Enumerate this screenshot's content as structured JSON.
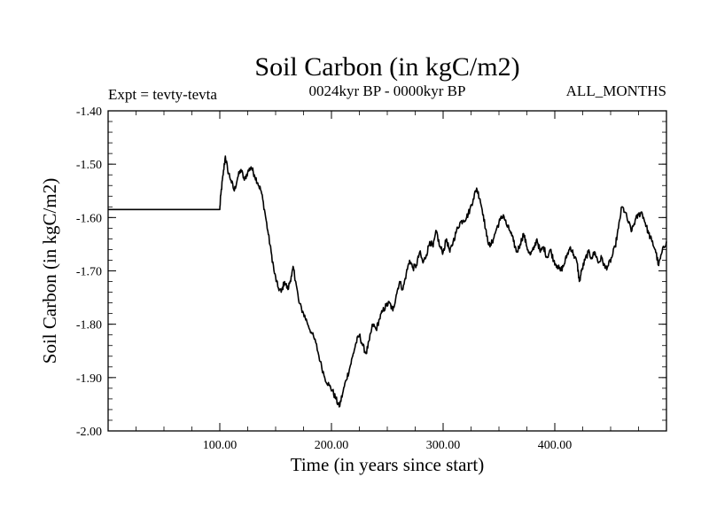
{
  "chart_data": {
    "type": "line",
    "title": "Soil Carbon (in kgC/m2)",
    "subtitle": "0024kyr BP - 0000kyr BP",
    "left_label": "Expt = tevty-tevta",
    "right_label": "ALL_MONTHS",
    "xlabel": "Time (in years since start)",
    "ylabel": "Soil Carbon (in kgC/m2)",
    "xlim": [
      0,
      500
    ],
    "ylim": [
      -2.0,
      -1.4
    ],
    "x_ticks": [
      100,
      200,
      300,
      400
    ],
    "x_tick_labels": [
      "100.00",
      "200.00",
      "300.00",
      "400.00"
    ],
    "y_ticks": [
      -1.4,
      -1.5,
      -1.6,
      -1.7,
      -1.8,
      -1.9,
      -2.0
    ],
    "y_tick_labels": [
      "-1.40",
      "-1.50",
      "-1.60",
      "-1.70",
      "-1.80",
      "-1.90",
      "-2.00"
    ],
    "grid": false,
    "series": [
      {
        "color": "#000000",
        "points": [
          [
            0,
            -1.585
          ],
          [
            100,
            -1.585
          ],
          [
            101,
            -1.555
          ],
          [
            103,
            -1.52
          ],
          [
            105,
            -1.485
          ],
          [
            107,
            -1.51
          ],
          [
            110,
            -1.53
          ],
          [
            113,
            -1.55
          ],
          [
            116,
            -1.525
          ],
          [
            119,
            -1.51
          ],
          [
            122,
            -1.53
          ],
          [
            125,
            -1.515
          ],
          [
            128,
            -1.505
          ],
          [
            131,
            -1.52
          ],
          [
            134,
            -1.535
          ],
          [
            137,
            -1.55
          ],
          [
            140,
            -1.585
          ],
          [
            143,
            -1.625
          ],
          [
            146,
            -1.665
          ],
          [
            149,
            -1.705
          ],
          [
            152,
            -1.73
          ],
          [
            155,
            -1.74
          ],
          [
            158,
            -1.72
          ],
          [
            161,
            -1.735
          ],
          [
            164,
            -1.71
          ],
          [
            166,
            -1.695
          ],
          [
            168,
            -1.72
          ],
          [
            171,
            -1.76
          ],
          [
            175,
            -1.78
          ],
          [
            178,
            -1.795
          ],
          [
            182,
            -1.815
          ],
          [
            186,
            -1.835
          ],
          [
            190,
            -1.87
          ],
          [
            194,
            -1.9
          ],
          [
            198,
            -1.915
          ],
          [
            201,
            -1.925
          ],
          [
            204,
            -1.94
          ],
          [
            207,
            -1.955
          ],
          [
            210,
            -1.93
          ],
          [
            213,
            -1.905
          ],
          [
            216,
            -1.885
          ],
          [
            219,
            -1.86
          ],
          [
            222,
            -1.835
          ],
          [
            225,
            -1.82
          ],
          [
            228,
            -1.84
          ],
          [
            231,
            -1.855
          ],
          [
            234,
            -1.83
          ],
          [
            237,
            -1.8
          ],
          [
            240,
            -1.81
          ],
          [
            243,
            -1.79
          ],
          [
            246,
            -1.775
          ],
          [
            249,
            -1.765
          ],
          [
            252,
            -1.76
          ],
          [
            255,
            -1.775
          ],
          [
            258,
            -1.745
          ],
          [
            261,
            -1.72
          ],
          [
            264,
            -1.735
          ],
          [
            267,
            -1.705
          ],
          [
            270,
            -1.68
          ],
          [
            273,
            -1.695
          ],
          [
            276,
            -1.69
          ],
          [
            279,
            -1.665
          ],
          [
            282,
            -1.685
          ],
          [
            285,
            -1.67
          ],
          [
            288,
            -1.645
          ],
          [
            291,
            -1.655
          ],
          [
            294,
            -1.625
          ],
          [
            297,
            -1.655
          ],
          [
            300,
            -1.665
          ],
          [
            303,
            -1.64
          ],
          [
            306,
            -1.665
          ],
          [
            309,
            -1.645
          ],
          [
            312,
            -1.625
          ],
          [
            315,
            -1.61
          ],
          [
            318,
            -1.605
          ],
          [
            321,
            -1.6
          ],
          [
            324,
            -1.585
          ],
          [
            327,
            -1.565
          ],
          [
            330,
            -1.545
          ],
          [
            333,
            -1.565
          ],
          [
            336,
            -1.595
          ],
          [
            339,
            -1.635
          ],
          [
            342,
            -1.655
          ],
          [
            345,
            -1.64
          ],
          [
            348,
            -1.62
          ],
          [
            351,
            -1.605
          ],
          [
            354,
            -1.595
          ],
          [
            357,
            -1.615
          ],
          [
            360,
            -1.625
          ],
          [
            363,
            -1.645
          ],
          [
            366,
            -1.665
          ],
          [
            369,
            -1.65
          ],
          [
            372,
            -1.63
          ],
          [
            375,
            -1.655
          ],
          [
            378,
            -1.67
          ],
          [
            381,
            -1.66
          ],
          [
            384,
            -1.64
          ],
          [
            387,
            -1.665
          ],
          [
            390,
            -1.655
          ],
          [
            393,
            -1.675
          ],
          [
            396,
            -1.66
          ],
          [
            399,
            -1.68
          ],
          [
            402,
            -1.69
          ],
          [
            405,
            -1.7
          ],
          [
            408,
            -1.69
          ],
          [
            411,
            -1.67
          ],
          [
            414,
            -1.655
          ],
          [
            417,
            -1.67
          ],
          [
            420,
            -1.685
          ],
          [
            422,
            -1.72
          ],
          [
            424,
            -1.7
          ],
          [
            427,
            -1.68
          ],
          [
            430,
            -1.665
          ],
          [
            433,
            -1.675
          ],
          [
            436,
            -1.665
          ],
          [
            439,
            -1.685
          ],
          [
            442,
            -1.675
          ],
          [
            445,
            -1.695
          ],
          [
            448,
            -1.69
          ],
          [
            451,
            -1.675
          ],
          [
            454,
            -1.655
          ],
          [
            457,
            -1.62
          ],
          [
            460,
            -1.58
          ],
          [
            463,
            -1.59
          ],
          [
            466,
            -1.61
          ],
          [
            469,
            -1.625
          ],
          [
            472,
            -1.605
          ],
          [
            475,
            -1.595
          ],
          [
            478,
            -1.59
          ],
          [
            481,
            -1.61
          ],
          [
            484,
            -1.63
          ],
          [
            487,
            -1.645
          ],
          [
            490,
            -1.66
          ],
          [
            493,
            -1.69
          ],
          [
            496,
            -1.665
          ],
          [
            500,
            -1.645
          ]
        ]
      }
    ]
  }
}
